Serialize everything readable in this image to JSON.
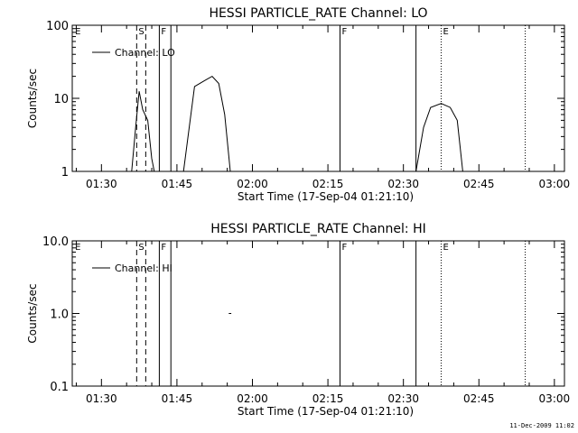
{
  "chart_data": [
    {
      "type": "line",
      "title": "HESSI PARTICLE_RATE Channel: LO",
      "xlabel": "Start Time (17-Sep-04 01:21:10)",
      "ylabel": "Counts/sec",
      "yscale": "log",
      "ylim": [
        1,
        100
      ],
      "xlim_minutes": [
        84.2,
        182
      ],
      "ytick_labels": [
        {
          "value": 100,
          "label": "100"
        },
        {
          "value": 10,
          "label": "10"
        },
        {
          "value": 1,
          "label": "1"
        }
      ],
      "xtick_labels": [
        {
          "value": 90,
          "label": "01:30"
        },
        {
          "value": 105,
          "label": "01:45"
        },
        {
          "value": 120,
          "label": "02:00"
        },
        {
          "value": 135,
          "label": "02:15"
        },
        {
          "value": 150,
          "label": "02:30"
        },
        {
          "value": 165,
          "label": "02:45"
        },
        {
          "value": 180,
          "label": "03:00"
        }
      ],
      "legend": "Channel: LO",
      "markers": [
        {
          "x": 84.4,
          "label": "E",
          "style": "none"
        },
        {
          "x": 97.0,
          "label": "S",
          "style": "dashed"
        },
        {
          "x": 98.8,
          "label": "",
          "style": "dashed"
        },
        {
          "x": 101.5,
          "label": "F",
          "style": "solid"
        },
        {
          "x": 103.8,
          "label": "",
          "style": "solid"
        },
        {
          "x": 137.4,
          "label": "F",
          "style": "solid"
        },
        {
          "x": 152.5,
          "label": "",
          "style": "solid"
        },
        {
          "x": 157.5,
          "label": "E",
          "style": "dotted"
        },
        {
          "x": 174.2,
          "label": "",
          "style": "dotted"
        }
      ],
      "series": [
        {
          "segments": [
            {
              "x": [
                96.0,
                96.8,
                97.5,
                98.2,
                99.2,
                100.0,
                100.5
              ],
              "y": [
                1.0,
                4.0,
                12.5,
                7.0,
                5.0,
                1.5,
                1.0
              ]
            },
            {
              "x": [
                106.3,
                108.5,
                110.5,
                112.0,
                113.3,
                114.5,
                115.6
              ],
              "y": [
                1.0,
                14.5,
                17.5,
                20.0,
                16.0,
                6.0,
                1.0
              ]
            },
            {
              "x": [
                152.5,
                154.0,
                155.4,
                157.5,
                159.3,
                160.7,
                161.8
              ],
              "y": [
                1.0,
                4.0,
                7.5,
                8.5,
                7.5,
                5.0,
                1.0
              ]
            }
          ]
        }
      ]
    },
    {
      "type": "line",
      "title": "HESSI PARTICLE_RATE Channel: HI",
      "xlabel": "Start Time (17-Sep-04 01:21:10)",
      "ylabel": "Counts/sec",
      "yscale": "log",
      "ylim": [
        0.1,
        10
      ],
      "xlim_minutes": [
        84.2,
        182
      ],
      "ytick_labels": [
        {
          "value": 10,
          "label": "10.0"
        },
        {
          "value": 1,
          "label": "1.0"
        },
        {
          "value": 0.1,
          "label": "0.1"
        }
      ],
      "xtick_labels": [
        {
          "value": 90,
          "label": "01:30"
        },
        {
          "value": 105,
          "label": "01:45"
        },
        {
          "value": 120,
          "label": "02:00"
        },
        {
          "value": 135,
          "label": "02:15"
        },
        {
          "value": 150,
          "label": "02:30"
        },
        {
          "value": 165,
          "label": "02:45"
        },
        {
          "value": 180,
          "label": "03:00"
        }
      ],
      "legend": "Channel: HI",
      "markers": [
        {
          "x": 84.4,
          "label": "E",
          "style": "none"
        },
        {
          "x": 97.0,
          "label": "S",
          "style": "dashed"
        },
        {
          "x": 98.8,
          "label": "",
          "style": "dashed"
        },
        {
          "x": 101.5,
          "label": "F",
          "style": "solid"
        },
        {
          "x": 103.8,
          "label": "",
          "style": "solid"
        },
        {
          "x": 137.4,
          "label": "F",
          "style": "solid"
        },
        {
          "x": 152.5,
          "label": "",
          "style": "solid"
        },
        {
          "x": 157.5,
          "label": "E",
          "style": "dotted"
        },
        {
          "x": 174.2,
          "label": "",
          "style": "dotted"
        }
      ],
      "series": [
        {
          "segments": [
            {
              "x": [
                115.3,
                115.8
              ],
              "y": [
                1.0,
                1.0
              ]
            }
          ]
        }
      ]
    }
  ],
  "footer": {
    "timestamp": "11-Dec-2009 11:02"
  }
}
